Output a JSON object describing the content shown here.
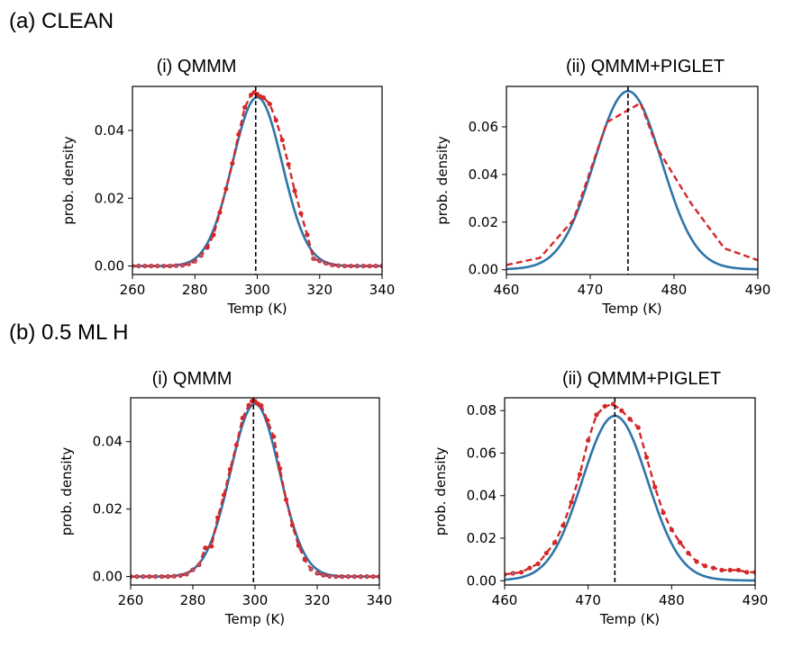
{
  "sections": [
    {
      "label": "(a) CLEAN"
    },
    {
      "label": "(b) 0.5 ML H"
    }
  ],
  "colors": {
    "fit_line": "#2e75a8",
    "data_dashed": "#d62728",
    "data_dots": "#d62728",
    "dot_center": "#7b7bb0",
    "reference_line": "#000000"
  },
  "chart_data": [
    {
      "id": "a-i",
      "section": "(a) CLEAN",
      "type": "line",
      "title": "(i) QMMM",
      "xlabel": "Temp (K)",
      "ylabel": "prob. density",
      "xlim": [
        260,
        340
      ],
      "ylim": [
        -0.0025,
        0.053
      ],
      "xticks": [
        260,
        280,
        300,
        320,
        340
      ],
      "yticks": [
        0.0,
        0.02,
        0.04
      ],
      "ytick_labels": [
        "0.00",
        "0.02",
        "0.04"
      ],
      "reference_x": 299.5,
      "fit": {
        "mean": 300,
        "sd": 8,
        "peak": 0.0498
      },
      "dots": true,
      "data": {
        "x": [
          260,
          262,
          264,
          266,
          268,
          270,
          272,
          274,
          276,
          278,
          280,
          282,
          284,
          286,
          288,
          290,
          292,
          294,
          296,
          298,
          299,
          300,
          301,
          302,
          304,
          306,
          308,
          310,
          312,
          314,
          316,
          318,
          320,
          322,
          324,
          326,
          328,
          330,
          332,
          334,
          336,
          338,
          340
        ],
        "y": [
          0,
          0,
          0,
          0,
          0,
          0,
          0,
          0.0001,
          0.0002,
          0.0006,
          0.0014,
          0.0031,
          0.0055,
          0.0092,
          0.0158,
          0.0228,
          0.0303,
          0.0388,
          0.0468,
          0.0505,
          0.0512,
          0.0507,
          0.05,
          0.0497,
          0.0478,
          0.043,
          0.0372,
          0.03,
          0.0222,
          0.0155,
          0.0092,
          0.0022,
          0.0015,
          0.0008,
          0.0003,
          0.0001,
          0,
          0,
          0,
          0,
          0,
          0,
          0
        ]
      }
    },
    {
      "id": "a-ii",
      "section": "(a) CLEAN",
      "type": "line",
      "title": "(ii) QMMM+PIGLET",
      "xlabel": "Temp (K)",
      "ylabel": "prob. density",
      "xlim": [
        460,
        490
      ],
      "ylim": [
        -0.002,
        0.077
      ],
      "xticks": [
        460,
        470,
        480,
        490
      ],
      "yticks": [
        0.0,
        0.02,
        0.04,
        0.06
      ],
      "ytick_labels": [
        "0.00",
        "0.02",
        "0.04",
        "0.06"
      ],
      "reference_x": 474.5,
      "fit": {
        "mean": 474.5,
        "sd": 4.0,
        "peak": 0.074,
        "tail": 0.001,
        "tail_sd": 8
      },
      "dots": false,
      "data": {
        "x": [
          460,
          464,
          468,
          472,
          474,
          476,
          478,
          482,
          486,
          490
        ],
        "y": [
          0.002,
          0.005,
          0.021,
          0.062,
          0.066,
          0.07,
          0.051,
          0.028,
          0.009,
          0.004
        ]
      }
    },
    {
      "id": "b-i",
      "section": "(b) 0.5 ML H",
      "type": "line",
      "title": "(i) QMMM",
      "xlabel": "Temp (K)",
      "ylabel": "prob. density",
      "xlim": [
        260,
        340
      ],
      "ylim": [
        -0.0025,
        0.053
      ],
      "xticks": [
        260,
        280,
        300,
        320,
        340
      ],
      "yticks": [
        0.0,
        0.02,
        0.04
      ],
      "ytick_labels": [
        "0.00",
        "0.02",
        "0.04"
      ],
      "reference_x": 299.5,
      "fit": {
        "mean": 300,
        "sd": 7.9,
        "peak": 0.0512
      },
      "dots": true,
      "data": {
        "x": [
          260,
          262,
          264,
          266,
          268,
          270,
          272,
          274,
          276,
          278,
          280,
          282,
          284,
          286,
          288,
          290,
          292,
          294,
          296,
          298,
          299,
          300,
          301,
          302,
          304,
          306,
          308,
          310,
          312,
          314,
          316,
          318,
          320,
          322,
          324,
          326,
          328,
          330,
          332,
          334,
          336,
          338,
          340
        ],
        "y": [
          0,
          0,
          0,
          0,
          0,
          0,
          0,
          0.0001,
          0.0003,
          0.0007,
          0.002,
          0.0035,
          0.0085,
          0.009,
          0.0175,
          0.0242,
          0.0318,
          0.039,
          0.047,
          0.0508,
          0.052,
          0.052,
          0.0512,
          0.0507,
          0.0463,
          0.0415,
          0.032,
          0.0228,
          0.0152,
          0.0092,
          0.005,
          0.0022,
          0.001,
          0.0004,
          0.0001,
          0,
          0,
          0,
          0,
          0,
          0,
          0,
          0
        ]
      }
    },
    {
      "id": "b-ii",
      "section": "(b) 0.5 ML H",
      "type": "line",
      "title": "(ii) QMMM+PIGLET",
      "xlabel": "Temp (K)",
      "ylabel": "prob. density",
      "xlim": [
        460,
        490
      ],
      "ylim": [
        -0.002,
        0.086
      ],
      "xticks": [
        460,
        470,
        480,
        490
      ],
      "yticks": [
        0.0,
        0.02,
        0.04,
        0.06,
        0.08
      ],
      "ytick_labels": [
        "0.00",
        "0.02",
        "0.04",
        "0.06",
        "0.08"
      ],
      "reference_x": 473.2,
      "fit": {
        "mean": 473.2,
        "sd": 3.9,
        "peak": 0.0765,
        "tail": 0.001,
        "tail_sd": 8
      },
      "dots": true,
      "data": {
        "x": [
          460,
          461,
          462,
          463,
          464,
          465,
          466,
          467,
          468,
          469,
          470,
          471,
          472,
          473,
          474,
          475,
          476,
          477,
          478,
          479,
          480,
          481,
          482,
          483,
          484,
          485,
          486,
          487,
          488,
          489,
          490
        ],
        "y": [
          0.003,
          0.0035,
          0.004,
          0.006,
          0.008,
          0.013,
          0.018,
          0.026,
          0.037,
          0.05,
          0.066,
          0.078,
          0.082,
          0.083,
          0.08,
          0.076,
          0.072,
          0.058,
          0.044,
          0.032,
          0.024,
          0.018,
          0.013,
          0.009,
          0.007,
          0.006,
          0.005,
          0.005,
          0.005,
          0.004,
          0.004
        ]
      }
    }
  ]
}
